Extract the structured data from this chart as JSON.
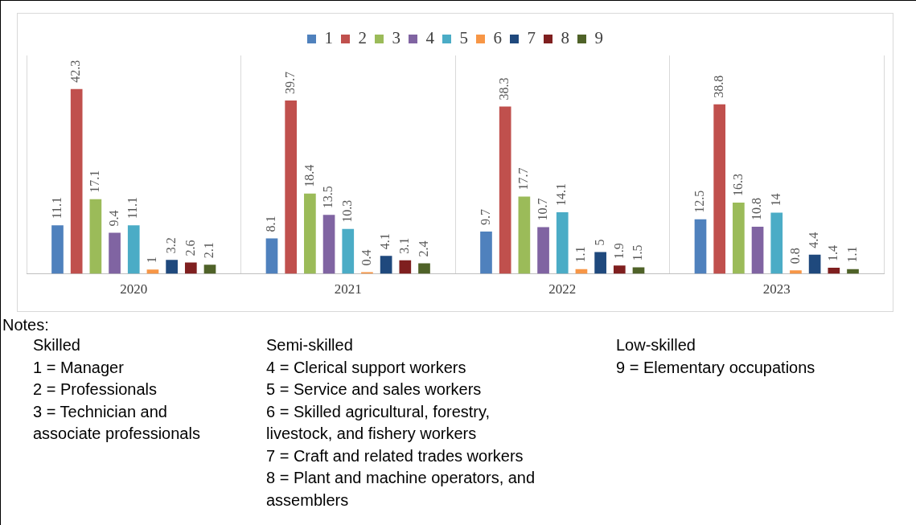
{
  "chart_data": {
    "type": "bar",
    "categories": [
      "2020",
      "2021",
      "2022",
      "2023"
    ],
    "series": [
      {
        "name": "1",
        "color": "#4f81bd",
        "values": [
          11.1,
          8.1,
          9.7,
          12.5
        ]
      },
      {
        "name": "2",
        "color": "#c0504d",
        "values": [
          42.3,
          39.7,
          38.3,
          38.8
        ]
      },
      {
        "name": "3",
        "color": "#9bbb59",
        "values": [
          17.1,
          18.4,
          17.7,
          16.3
        ]
      },
      {
        "name": "4",
        "color": "#8064a2",
        "values": [
          9.4,
          13.5,
          10.7,
          10.8
        ]
      },
      {
        "name": "5",
        "color": "#4bacc6",
        "values": [
          11.1,
          10.3,
          14.1,
          14
        ]
      },
      {
        "name": "6",
        "color": "#f79646",
        "values": [
          1,
          0.4,
          1.1,
          0.8
        ]
      },
      {
        "name": "7",
        "color": "#1f497d",
        "values": [
          3.2,
          4.1,
          5,
          4.4
        ]
      },
      {
        "name": "8",
        "color": "#7f1f1f",
        "values": [
          2.6,
          3.1,
          1.9,
          1.4
        ]
      },
      {
        "name": "9",
        "color": "#4f6228",
        "values": [
          2.1,
          2.4,
          1.5,
          1.1
        ]
      }
    ],
    "data_labels": true,
    "legend": "top",
    "grid": "x",
    "tick_labels": "x",
    "annotations": [
      "Notes:",
      "Skilled\n1 = Manager\n2 = Professionals\n3 = Technician and associate professionals",
      "Semi-skilled\n4 = Clerical support workers\n5 = Service and sales workers\n6 = Skilled agricultural, forestry, livestock, and fishery workers\n7 = Craft and related trades workers\n8 = Plant and machine operators, and assemblers",
      "Low-skilled\n9 = Elementary occupations"
    ]
  }
}
